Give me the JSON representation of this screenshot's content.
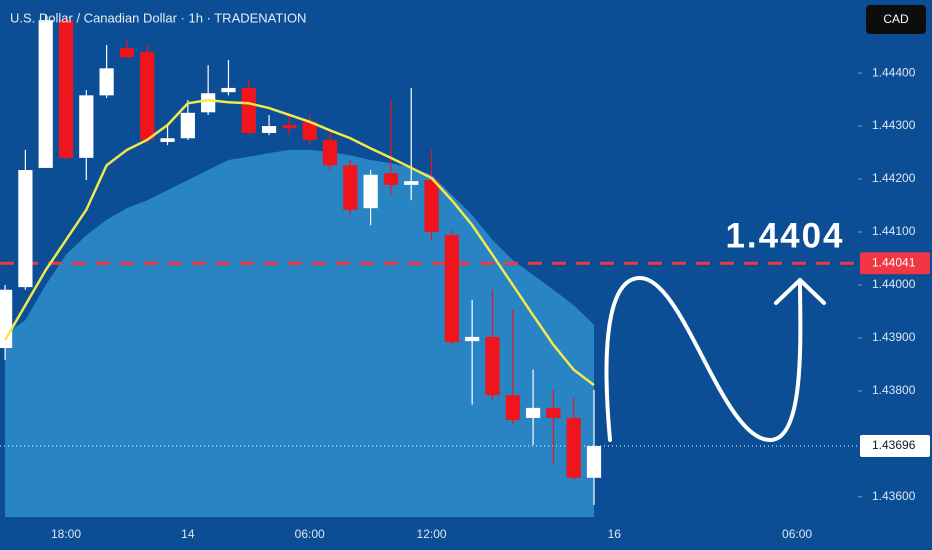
{
  "chart_data": {
    "type": "candlestick",
    "title": "U.S. Dollar / Canadian Dollar · 1h · TRADENATION",
    "currency": "CAD",
    "up_color": "#ffffff",
    "down_color": "#f0141c",
    "xlim": [
      -0.25,
      42
    ],
    "xticks": [
      {
        "value": 3,
        "label": "18:00"
      },
      {
        "value": 9,
        "label": "14"
      },
      {
        "value": 15,
        "label": "06:00"
      },
      {
        "value": 21,
        "label": "12:00"
      },
      {
        "value": 30,
        "label": "16"
      },
      {
        "value": 39,
        "label": "06:00"
      }
    ],
    "ylim": [
      1.43562,
      1.44538
    ],
    "yticks": [
      {
        "value": 1.436,
        "label": "1.43600"
      },
      {
        "value": 1.438,
        "label": "1.43800"
      },
      {
        "value": 1.439,
        "label": "1.43900"
      },
      {
        "value": 1.44,
        "label": "1.44000"
      },
      {
        "value": 1.441,
        "label": "1.44100"
      },
      {
        "value": 1.442,
        "label": "1.44200"
      },
      {
        "value": 1.443,
        "label": "1.44300"
      },
      {
        "value": 1.444,
        "label": "1.44400"
      }
    ],
    "open": [
      1.43881,
      1.43996,
      1.44221,
      1.445,
      1.4424,
      1.44358,
      1.44447,
      1.4444,
      1.4427,
      1.44277,
      1.44326,
      1.44364,
      1.44372,
      1.44287,
      1.44302,
      1.44308,
      1.44274,
      1.44226,
      1.44145,
      1.44211,
      1.44189,
      1.44198,
      1.44094,
      1.43894,
      1.43902,
      1.43792,
      1.43749,
      1.43768,
      1.43749,
      1.43636
    ],
    "high": [
      1.44,
      1.44255,
      1.44509,
      1.44509,
      1.44368,
      1.44453,
      1.44462,
      1.44453,
      1.44302,
      1.44349,
      1.44415,
      1.44425,
      1.44387,
      1.44321,
      1.44321,
      1.44321,
      1.44292,
      1.44236,
      1.44217,
      1.44349,
      1.44372,
      1.44255,
      1.44104,
      1.43972,
      1.43991,
      1.43953,
      1.4384,
      1.43802,
      1.43787,
      1.43802
    ],
    "low": [
      1.43858,
      1.43991,
      1.44221,
      1.44236,
      1.44198,
      1.44353,
      1.44428,
      1.44264,
      1.44264,
      1.44274,
      1.44321,
      1.44358,
      1.44283,
      1.44283,
      1.44283,
      1.44264,
      1.44217,
      1.44132,
      1.44113,
      1.4417,
      1.4416,
      1.44085,
      1.43887,
      1.43774,
      1.43783,
      1.43736,
      1.43698,
      1.4366,
      1.43632,
      1.43585
    ],
    "close": [
      1.43991,
      1.44217,
      1.445,
      1.4424,
      1.44358,
      1.44409,
      1.4443,
      1.44274,
      1.44277,
      1.44325,
      1.44362,
      1.44372,
      1.44287,
      1.443,
      1.44296,
      1.44274,
      1.44226,
      1.44142,
      1.44208,
      1.44189,
      1.44196,
      1.441,
      1.43892,
      1.43902,
      1.43792,
      1.43745,
      1.43768,
      1.43749,
      1.43636,
      1.43696
    ],
    "overlays": [
      {
        "kind": "area",
        "color": "#2f8ecb",
        "values": [
          1.43906,
          1.43934,
          1.44,
          1.44057,
          1.44094,
          1.44123,
          1.44145,
          1.4416,
          1.44179,
          1.44198,
          1.44217,
          1.44236,
          1.44242,
          1.44249,
          1.44255,
          1.44255,
          1.44251,
          1.44245,
          1.44236,
          1.4423,
          1.44221,
          1.44208,
          1.4417,
          1.44132,
          1.44085,
          1.44047,
          1.44019,
          1.43991,
          1.43962,
          1.43925
        ]
      },
      {
        "kind": "line",
        "color": "#f2ea4c",
        "values": [
          1.43896,
          1.43962,
          1.44028,
          1.44085,
          1.44142,
          1.44226,
          1.44255,
          1.44274,
          1.44302,
          1.44343,
          1.44349,
          1.44345,
          1.44343,
          1.44334,
          1.44321,
          1.44308,
          1.44292,
          1.44277,
          1.44258,
          1.4424,
          1.44221,
          1.44202,
          1.4416,
          1.44113,
          1.44057,
          1.44,
          1.43943,
          1.43887,
          1.4384,
          1.43811
        ]
      }
    ],
    "price_lines": [
      {
        "value": 1.44041,
        "color": "#f23645",
        "style": "dashed",
        "label_text_color": "#ffffff"
      },
      {
        "value": 1.43696,
        "color": "#ffffff",
        "style": "dotted",
        "label_text_color": "#131722"
      }
    ],
    "annotation": "1.4404"
  }
}
